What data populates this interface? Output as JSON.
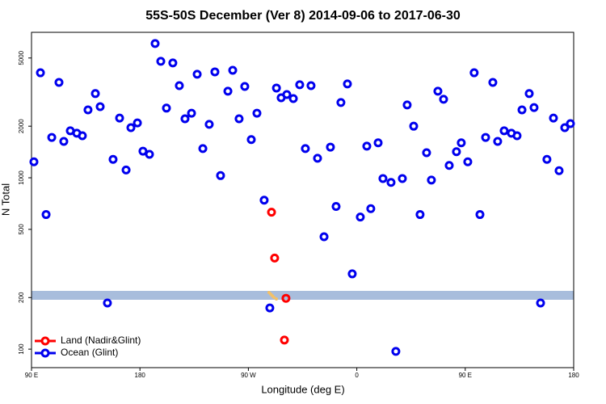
{
  "chart_data": {
    "type": "scatter",
    "title": "55S-50S December (Ver 8)   2014-09-06 to 2017-06-30",
    "x_label": "Longitude (deg E)",
    "y_label": "N Total",
    "y_scale": "log",
    "xlim": [
      90,
      540
    ],
    "xticks": [
      {
        "value": 90,
        "label": "90 E"
      },
      {
        "value": 180,
        "label": "180"
      },
      {
        "value": 270,
        "label": "90 W"
      },
      {
        "value": 360,
        "label": "0"
      },
      {
        "value": 450,
        "label": "90 E"
      },
      {
        "value": 540,
        "label": "180"
      }
    ],
    "ylim": [
      78,
      7060
    ],
    "yticks": [
      100,
      200,
      500,
      1000,
      2000,
      5000
    ],
    "legend": "bottom-left",
    "series": [
      {
        "name": "Ocean (Glint)",
        "color": "#0000ee",
        "x": [
          92.0,
          97.4,
          102.1,
          106.8,
          112.8,
          116.8,
          122.2,
          127.6,
          132.2,
          136.9,
          143.0,
          147.0,
          153.0,
          157.7,
          163.1,
          168.5,
          172.5,
          177.9,
          182.5,
          187.9,
          192.6,
          197.3,
          202.0,
          207.3,
          212.7,
          217.4,
          222.8,
          227.5,
          232.2,
          237.5,
          242.2,
          246.9,
          253.0,
          257.0,
          262.3,
          267.0,
          272.4,
          277.1,
          283.1,
          287.8,
          293.3,
          297.2,
          301.9,
          307.3,
          312.6,
          317.3,
          322.0,
          327.4,
          332.8,
          338.1,
          342.8,
          346.8,
          352.2,
          356.2,
          362.9,
          368.3,
          371.6,
          377.7,
          381.7,
          388.4,
          392.4,
          397.8,
          401.8,
          407.2,
          412.5,
          417.9,
          421.9,
          427.3,
          432.0,
          436.7,
          442.7,
          446.7,
          452.1,
          457.4,
          462.2,
          466.9,
          472.9,
          476.9,
          482.3,
          488.3,
          493.0,
          497.1,
          503.1,
          507.1,
          512.5,
          517.8,
          523.2,
          527.9,
          532.6,
          537.3
        ],
        "values": [
          1240,
          4100,
          610,
          1720,
          3600,
          1630,
          1880,
          1820,
          1760,
          2490,
          3100,
          2600,
          186,
          1280,
          2230,
          1110,
          1960,
          2090,
          1430,
          1370,
          6070,
          4780,
          2550,
          4680,
          3450,
          2210,
          2380,
          4020,
          1480,
          2050,
          4150,
          1030,
          3200,
          4240,
          2210,
          3410,
          1670,
          2380,
          740,
          174,
          3340,
          2930,
          3060,
          2900,
          3490,
          1480,
          3450,
          1300,
          453,
          1510,
          680,
          2750,
          3530,
          275,
          590,
          1530,
          660,
          1600,
          990,
          940,
          97,
          990,
          2660,
          2000,
          610,
          1400,
          970,
          3200,
          2870,
          1180,
          1420,
          1600,
          1240,
          4100,
          610,
          1720,
          3600,
          1630,
          1880,
          1820,
          1760,
          2490,
          3100,
          2570,
          186,
          1280,
          2230,
          1100,
          1960,
          2070
        ]
      },
      {
        "name": "Land (Nadir&Glint)",
        "color": "#ff0000",
        "x": [
          289.2,
          291.8,
          301.2,
          299.9
        ],
        "values": [
          630,
          340,
          198,
          113
        ]
      }
    ]
  }
}
